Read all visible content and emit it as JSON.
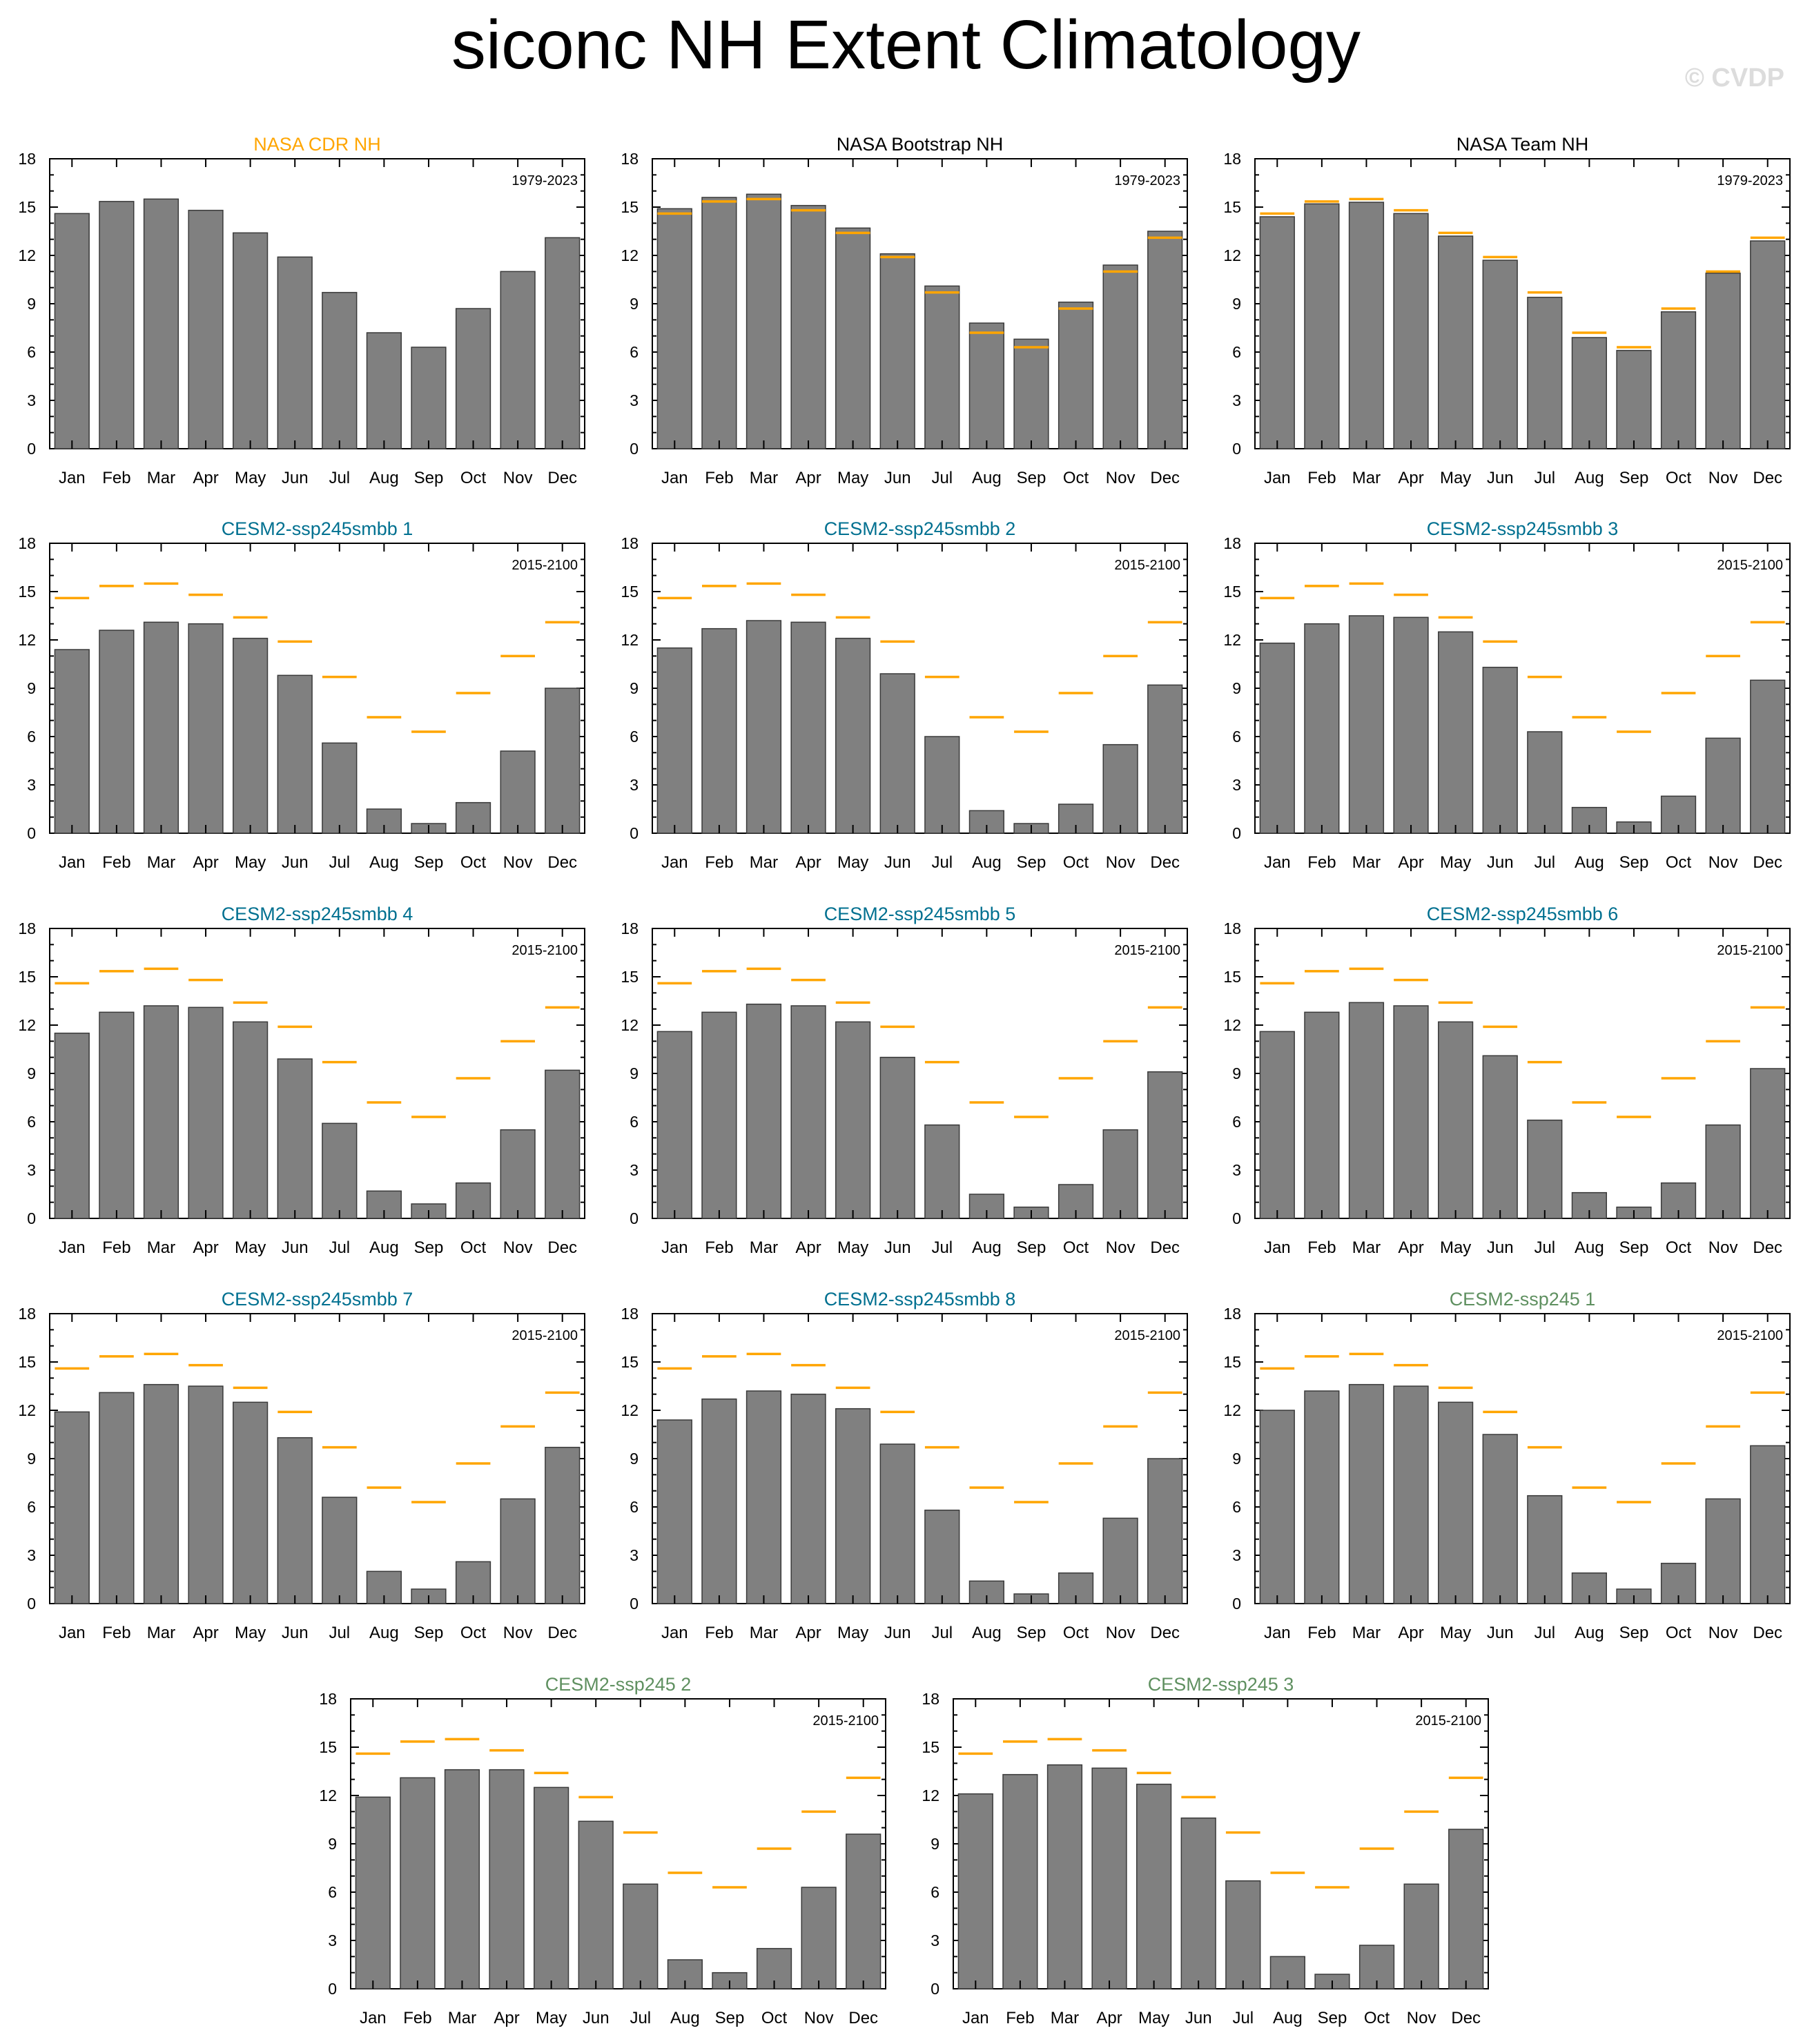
{
  "title": "siconc NH Extent Climatology",
  "watermark": "© CVDP",
  "colors": {
    "bar": "#808080",
    "bar_edge": "#3a3a3a",
    "reference_line": "#ffa500",
    "title_obs_ref": "#ffa500",
    "title_obs": "#000000",
    "title_smbb": "#007090",
    "title_ssp245": "#5f9060"
  },
  "chart_data": [
    {
      "type": "bar",
      "title": "NASA CDR NH",
      "title_color": "title_obs_ref",
      "period": "1979-2023",
      "categories": [
        "Jan",
        "Feb",
        "Mar",
        "Apr",
        "May",
        "Jun",
        "Jul",
        "Aug",
        "Sep",
        "Oct",
        "Nov",
        "Dec"
      ],
      "values": [
        14.6,
        15.35,
        15.5,
        14.8,
        13.4,
        11.9,
        9.7,
        7.2,
        6.3,
        8.7,
        11.0,
        13.1
      ],
      "reference": null,
      "ylim": [
        0,
        18
      ],
      "yticks": [
        0,
        3,
        6,
        9,
        12,
        15,
        18
      ]
    },
    {
      "type": "bar",
      "title": "NASA Bootstrap NH",
      "title_color": "title_obs",
      "period": "1979-2023",
      "categories": [
        "Jan",
        "Feb",
        "Mar",
        "Apr",
        "May",
        "Jun",
        "Jul",
        "Aug",
        "Sep",
        "Oct",
        "Nov",
        "Dec"
      ],
      "values": [
        14.9,
        15.6,
        15.8,
        15.1,
        13.7,
        12.1,
        10.1,
        7.8,
        6.8,
        9.1,
        11.4,
        13.5
      ],
      "reference": [
        14.6,
        15.35,
        15.5,
        14.8,
        13.4,
        11.9,
        9.7,
        7.2,
        6.3,
        8.7,
        11.0,
        13.1
      ],
      "ylim": [
        0,
        18
      ],
      "yticks": [
        0,
        3,
        6,
        9,
        12,
        15,
        18
      ]
    },
    {
      "type": "bar",
      "title": "NASA Team NH",
      "title_color": "title_obs",
      "period": "1979-2023",
      "categories": [
        "Jan",
        "Feb",
        "Mar",
        "Apr",
        "May",
        "Jun",
        "Jul",
        "Aug",
        "Sep",
        "Oct",
        "Nov",
        "Dec"
      ],
      "values": [
        14.4,
        15.2,
        15.3,
        14.6,
        13.2,
        11.7,
        9.4,
        6.9,
        6.1,
        8.5,
        10.9,
        12.9
      ],
      "reference": [
        14.6,
        15.35,
        15.5,
        14.8,
        13.4,
        11.9,
        9.7,
        7.2,
        6.3,
        8.7,
        11.0,
        13.1
      ],
      "ylim": [
        0,
        18
      ],
      "yticks": [
        0,
        3,
        6,
        9,
        12,
        15,
        18
      ]
    },
    {
      "type": "bar",
      "title": "CESM2-ssp245smbb 1",
      "title_color": "title_smbb",
      "period": "2015-2100",
      "categories": [
        "Jan",
        "Feb",
        "Mar",
        "Apr",
        "May",
        "Jun",
        "Jul",
        "Aug",
        "Sep",
        "Oct",
        "Nov",
        "Dec"
      ],
      "values": [
        11.4,
        12.6,
        13.1,
        13.0,
        12.1,
        9.8,
        5.6,
        1.5,
        0.6,
        1.9,
        5.1,
        9.0
      ],
      "reference": [
        14.6,
        15.35,
        15.5,
        14.8,
        13.4,
        11.9,
        9.7,
        7.2,
        6.3,
        8.7,
        11.0,
        13.1
      ],
      "ylim": [
        0,
        18
      ],
      "yticks": [
        0,
        3,
        6,
        9,
        12,
        15,
        18
      ]
    },
    {
      "type": "bar",
      "title": "CESM2-ssp245smbb 2",
      "title_color": "title_smbb",
      "period": "2015-2100",
      "categories": [
        "Jan",
        "Feb",
        "Mar",
        "Apr",
        "May",
        "Jun",
        "Jul",
        "Aug",
        "Sep",
        "Oct",
        "Nov",
        "Dec"
      ],
      "values": [
        11.5,
        12.7,
        13.2,
        13.1,
        12.1,
        9.9,
        6.0,
        1.4,
        0.6,
        1.8,
        5.5,
        9.2
      ],
      "reference": [
        14.6,
        15.35,
        15.5,
        14.8,
        13.4,
        11.9,
        9.7,
        7.2,
        6.3,
        8.7,
        11.0,
        13.1
      ],
      "ylim": [
        0,
        18
      ],
      "yticks": [
        0,
        3,
        6,
        9,
        12,
        15,
        18
      ]
    },
    {
      "type": "bar",
      "title": "CESM2-ssp245smbb 3",
      "title_color": "title_smbb",
      "period": "2015-2100",
      "categories": [
        "Jan",
        "Feb",
        "Mar",
        "Apr",
        "May",
        "Jun",
        "Jul",
        "Aug",
        "Sep",
        "Oct",
        "Nov",
        "Dec"
      ],
      "values": [
        11.8,
        13.0,
        13.5,
        13.4,
        12.5,
        10.3,
        6.3,
        1.6,
        0.7,
        2.3,
        5.9,
        9.5
      ],
      "reference": [
        14.6,
        15.35,
        15.5,
        14.8,
        13.4,
        11.9,
        9.7,
        7.2,
        6.3,
        8.7,
        11.0,
        13.1
      ],
      "ylim": [
        0,
        18
      ],
      "yticks": [
        0,
        3,
        6,
        9,
        12,
        15,
        18
      ]
    },
    {
      "type": "bar",
      "title": "CESM2-ssp245smbb 4",
      "title_color": "title_smbb",
      "period": "2015-2100",
      "categories": [
        "Jan",
        "Feb",
        "Mar",
        "Apr",
        "May",
        "Jun",
        "Jul",
        "Aug",
        "Sep",
        "Oct",
        "Nov",
        "Dec"
      ],
      "values": [
        11.5,
        12.8,
        13.2,
        13.1,
        12.2,
        9.9,
        5.9,
        1.7,
        0.9,
        2.2,
        5.5,
        9.2
      ],
      "reference": [
        14.6,
        15.35,
        15.5,
        14.8,
        13.4,
        11.9,
        9.7,
        7.2,
        6.3,
        8.7,
        11.0,
        13.1
      ],
      "ylim": [
        0,
        18
      ],
      "yticks": [
        0,
        3,
        6,
        9,
        12,
        15,
        18
      ]
    },
    {
      "type": "bar",
      "title": "CESM2-ssp245smbb 5",
      "title_color": "title_smbb",
      "period": "2015-2100",
      "categories": [
        "Jan",
        "Feb",
        "Mar",
        "Apr",
        "May",
        "Jun",
        "Jul",
        "Aug",
        "Sep",
        "Oct",
        "Nov",
        "Dec"
      ],
      "values": [
        11.6,
        12.8,
        13.3,
        13.2,
        12.2,
        10.0,
        5.8,
        1.5,
        0.7,
        2.1,
        5.5,
        9.1
      ],
      "reference": [
        14.6,
        15.35,
        15.5,
        14.8,
        13.4,
        11.9,
        9.7,
        7.2,
        6.3,
        8.7,
        11.0,
        13.1
      ],
      "ylim": [
        0,
        18
      ],
      "yticks": [
        0,
        3,
        6,
        9,
        12,
        15,
        18
      ]
    },
    {
      "type": "bar",
      "title": "CESM2-ssp245smbb 6",
      "title_color": "title_smbb",
      "period": "2015-2100",
      "categories": [
        "Jan",
        "Feb",
        "Mar",
        "Apr",
        "May",
        "Jun",
        "Jul",
        "Aug",
        "Sep",
        "Oct",
        "Nov",
        "Dec"
      ],
      "values": [
        11.6,
        12.8,
        13.4,
        13.2,
        12.2,
        10.1,
        6.1,
        1.6,
        0.7,
        2.2,
        5.8,
        9.3
      ],
      "reference": [
        14.6,
        15.35,
        15.5,
        14.8,
        13.4,
        11.9,
        9.7,
        7.2,
        6.3,
        8.7,
        11.0,
        13.1
      ],
      "ylim": [
        0,
        18
      ],
      "yticks": [
        0,
        3,
        6,
        9,
        12,
        15,
        18
      ]
    },
    {
      "type": "bar",
      "title": "CESM2-ssp245smbb 7",
      "title_color": "title_smbb",
      "period": "2015-2100",
      "categories": [
        "Jan",
        "Feb",
        "Mar",
        "Apr",
        "May",
        "Jun",
        "Jul",
        "Aug",
        "Sep",
        "Oct",
        "Nov",
        "Dec"
      ],
      "values": [
        11.9,
        13.1,
        13.6,
        13.5,
        12.5,
        10.3,
        6.6,
        2.0,
        0.9,
        2.6,
        6.5,
        9.7
      ],
      "reference": [
        14.6,
        15.35,
        15.5,
        14.8,
        13.4,
        11.9,
        9.7,
        7.2,
        6.3,
        8.7,
        11.0,
        13.1
      ],
      "ylim": [
        0,
        18
      ],
      "yticks": [
        0,
        3,
        6,
        9,
        12,
        15,
        18
      ]
    },
    {
      "type": "bar",
      "title": "CESM2-ssp245smbb 8",
      "title_color": "title_smbb",
      "period": "2015-2100",
      "categories": [
        "Jan",
        "Feb",
        "Mar",
        "Apr",
        "May",
        "Jun",
        "Jul",
        "Aug",
        "Sep",
        "Oct",
        "Nov",
        "Dec"
      ],
      "values": [
        11.4,
        12.7,
        13.2,
        13.0,
        12.1,
        9.9,
        5.8,
        1.4,
        0.6,
        1.9,
        5.3,
        9.0
      ],
      "reference": [
        14.6,
        15.35,
        15.5,
        14.8,
        13.4,
        11.9,
        9.7,
        7.2,
        6.3,
        8.7,
        11.0,
        13.1
      ],
      "ylim": [
        0,
        18
      ],
      "yticks": [
        0,
        3,
        6,
        9,
        12,
        15,
        18
      ]
    },
    {
      "type": "bar",
      "title": "CESM2-ssp245 1",
      "title_color": "title_ssp245",
      "period": "2015-2100",
      "categories": [
        "Jan",
        "Feb",
        "Mar",
        "Apr",
        "May",
        "Jun",
        "Jul",
        "Aug",
        "Sep",
        "Oct",
        "Nov",
        "Dec"
      ],
      "values": [
        12.0,
        13.2,
        13.6,
        13.5,
        12.5,
        10.5,
        6.7,
        1.9,
        0.9,
        2.5,
        6.5,
        9.8
      ],
      "reference": [
        14.6,
        15.35,
        15.5,
        14.8,
        13.4,
        11.9,
        9.7,
        7.2,
        6.3,
        8.7,
        11.0,
        13.1
      ],
      "ylim": [
        0,
        18
      ],
      "yticks": [
        0,
        3,
        6,
        9,
        12,
        15,
        18
      ]
    },
    {
      "type": "bar",
      "title": "CESM2-ssp245 2",
      "title_color": "title_ssp245",
      "period": "2015-2100",
      "categories": [
        "Jan",
        "Feb",
        "Mar",
        "Apr",
        "May",
        "Jun",
        "Jul",
        "Aug",
        "Sep",
        "Oct",
        "Nov",
        "Dec"
      ],
      "values": [
        11.9,
        13.1,
        13.6,
        13.6,
        12.5,
        10.4,
        6.5,
        1.8,
        1.0,
        2.5,
        6.3,
        9.6
      ],
      "reference": [
        14.6,
        15.35,
        15.5,
        14.8,
        13.4,
        11.9,
        9.7,
        7.2,
        6.3,
        8.7,
        11.0,
        13.1
      ],
      "ylim": [
        0,
        18
      ],
      "yticks": [
        0,
        3,
        6,
        9,
        12,
        15,
        18
      ]
    },
    {
      "type": "bar",
      "title": "CESM2-ssp245 3",
      "title_color": "title_ssp245",
      "period": "2015-2100",
      "categories": [
        "Jan",
        "Feb",
        "Mar",
        "Apr",
        "May",
        "Jun",
        "Jul",
        "Aug",
        "Sep",
        "Oct",
        "Nov",
        "Dec"
      ],
      "values": [
        12.1,
        13.3,
        13.9,
        13.7,
        12.7,
        10.6,
        6.7,
        2.0,
        0.9,
        2.7,
        6.5,
        9.9
      ],
      "reference": [
        14.6,
        15.35,
        15.5,
        14.8,
        13.4,
        11.9,
        9.7,
        7.2,
        6.3,
        8.7,
        11.0,
        13.1
      ],
      "ylim": [
        0,
        18
      ],
      "yticks": [
        0,
        3,
        6,
        9,
        12,
        15,
        18
      ]
    }
  ]
}
